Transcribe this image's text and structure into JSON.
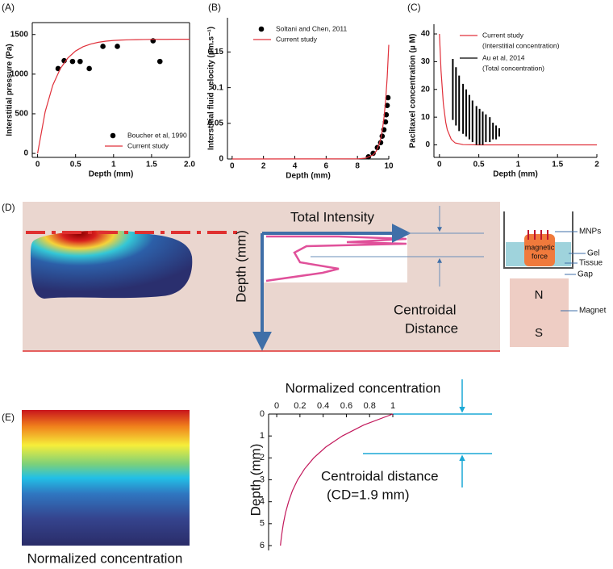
{
  "chart_data": [
    {
      "panel": "(A)",
      "type": "line",
      "xlabel": "Depth (mm)",
      "ylabel": "Interstitial pressure (Pa)",
      "xlim": [
        -0.07,
        2
      ],
      "ylim": [
        -50,
        1650
      ],
      "xticks": [
        0,
        0.5,
        1,
        1.5,
        {
          "value": 2,
          "label": "2.0"
        }
      ],
      "yticks": [
        0,
        500,
        1000,
        1500
      ],
      "legend": "lower right",
      "series": [
        {
          "name": "Boucher et al, 1990",
          "color": "#000000",
          "kind": "scatter",
          "x": [
            0.27,
            0.35,
            0.46,
            0.56,
            0.68,
            0.86,
            1.05,
            1.52,
            1.61
          ],
          "values": [
            1070,
            1170,
            1160,
            1160,
            1070,
            1350,
            1350,
            1420,
            1160
          ]
        },
        {
          "name": "Current study",
          "color": "#e0303a",
          "kind": "line",
          "x": [
            0,
            0.1,
            0.2,
            0.3,
            0.4,
            0.5,
            0.6,
            0.7,
            0.8,
            0.9,
            1.0,
            1.1,
            1.2,
            1.3,
            1.4,
            1.5,
            1.6,
            1.7,
            1.8,
            1.9,
            2.0
          ],
          "values": [
            0,
            526,
            860,
            1071,
            1206,
            1292,
            1346,
            1380,
            1402,
            1416,
            1425,
            1430,
            1433,
            1435,
            1437,
            1438,
            1439,
            1439,
            1440,
            1440,
            1440
          ]
        }
      ]
    },
    {
      "panel": "(B)",
      "type": "line",
      "xlabel": "Depth (mm)",
      "ylabel": "Interstitial fluid velocity (μm.s⁻¹)",
      "xlim": [
        -0.3,
        10
      ],
      "ylim": [
        0,
        0.198
      ],
      "xticks": [
        0,
        2,
        4,
        6,
        8,
        10
      ],
      "yticks": [
        0,
        0.05,
        0.1,
        0.15
      ],
      "legend": "upper left",
      "series": [
        {
          "name": "Soltani and Chen, 2011",
          "color": "#000000",
          "kind": "scatter",
          "x": [
            8.7,
            9.0,
            9.27,
            9.48,
            9.58,
            9.69,
            9.79,
            9.84,
            9.9,
            9.95
          ],
          "values": [
            0.003,
            0.008,
            0.016,
            0.023,
            0.032,
            0.041,
            0.052,
            0.062,
            0.075,
            0.086
          ]
        },
        {
          "name": "Current study",
          "color": "#e0303a",
          "kind": "line",
          "x": [
            0,
            8,
            8.5,
            9,
            9.2,
            9.4,
            9.5,
            9.6,
            9.7,
            9.8,
            9.9,
            10
          ],
          "values": [
            0,
            0.0002,
            0.0011,
            0.0057,
            0.0111,
            0.0217,
            0.0302,
            0.0422,
            0.0589,
            0.0821,
            0.1147,
            0.16
          ]
        }
      ]
    },
    {
      "panel": "(C)",
      "type": "line",
      "xlabel": "Depth (mm)",
      "ylabel": "Paclitaxel concentration (μ M)",
      "xlim": [
        -0.07,
        2
      ],
      "ylim": [
        -4.5,
        43.5
      ],
      "xticks": [
        0,
        0.5,
        1,
        1.5,
        2
      ],
      "yticks": [
        0,
        10,
        20,
        30,
        40
      ],
      "legend": "upper left",
      "series": [
        {
          "name": "Current study",
          "detail": "(Interstitial concentration)",
          "color": "#e0303a",
          "kind": "line",
          "x": [
            0,
            0.02,
            0.05,
            0.08,
            0.1,
            0.15,
            0.2,
            0.3,
            0.5,
            1,
            2
          ],
          "values": [
            40,
            26.8,
            14.7,
            8.1,
            5.4,
            2.0,
            0.7,
            0.1,
            0,
            0,
            0
          ]
        },
        {
          "name": "Au et al, 2014",
          "detail": "(Total concentration)",
          "color": "#000000",
          "kind": "range",
          "x": [
            0.17,
            0.21,
            0.25,
            0.3,
            0.34,
            0.38,
            0.42,
            0.47,
            0.51,
            0.55,
            0.59,
            0.64,
            0.68,
            0.72,
            0.76
          ],
          "low": [
            9,
            7,
            5,
            4,
            3,
            2,
            1,
            0,
            0,
            0,
            1,
            1,
            2,
            2,
            3
          ],
          "high": [
            31,
            28,
            25,
            22,
            20,
            18,
            16,
            14,
            13,
            12,
            11,
            10,
            8,
            7,
            6
          ]
        }
      ]
    },
    {
      "type": "line",
      "xlabel": "Normalized concentration",
      "ylabel": "Depth (mm)",
      "x_axis_position": "top",
      "y_inverted": true,
      "xlim": [
        -0.07,
        1
      ],
      "ylim": [
        0,
        6
      ],
      "xticks": [
        0,
        0.2,
        0.4,
        0.6,
        0.8,
        1
      ],
      "yticks": [
        0,
        1,
        2,
        3,
        4,
        5,
        6
      ],
      "annotations": [
        "Centroidal distance",
        "(CD=1.9 mm)"
      ],
      "series": [
        {
          "color": "#c2185b",
          "kind": "line",
          "x": [
            1,
            0.75,
            0.565,
            0.424,
            0.319,
            0.24,
            0.18,
            0.135,
            0.102,
            0.076,
            0.057,
            0.043,
            0.036,
            0.032
          ],
          "values": [
            0,
            0.5,
            1,
            1.5,
            2,
            2.5,
            3,
            3.5,
            4,
            4.5,
            5,
            5.5,
            5.8,
            6
          ]
        }
      ]
    }
  ],
  "panel_d": {
    "label": "(D)",
    "total_intensity": "Total Intensity",
    "depth": "Depth (mm)",
    "centroidal": "Centroidal",
    "distance": "Distance",
    "mnps": "MNPs",
    "magnetic": "magnetic",
    "force": "force",
    "gel": "Gel",
    "tissue": "Tissue",
    "gap": "Gap",
    "north": "N",
    "south": "S",
    "magnet": "Magnet"
  },
  "panel_e": {
    "label": "(E)",
    "caption": "Normalized concentration"
  }
}
